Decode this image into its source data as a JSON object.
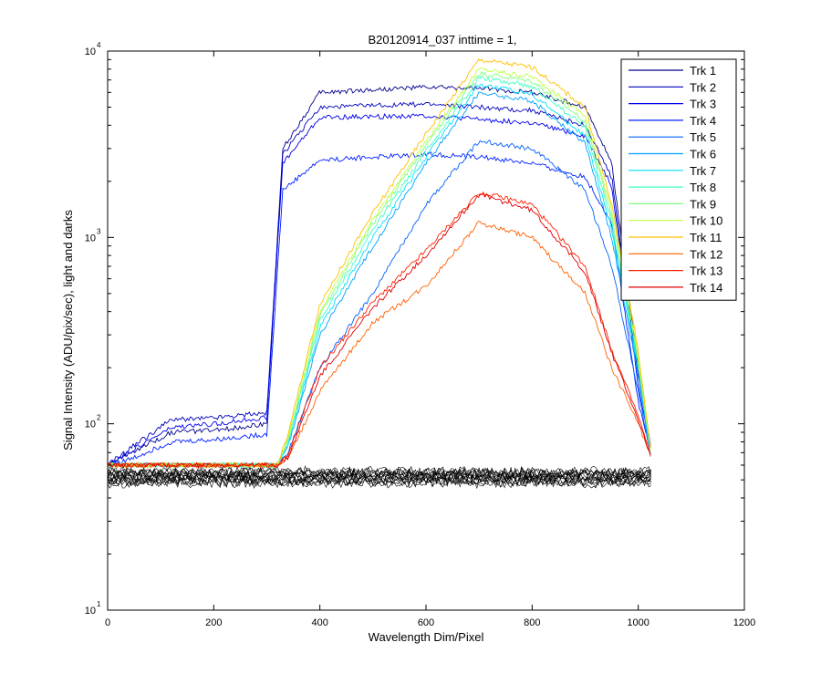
{
  "chart_data": {
    "type": "line",
    "title": "B20120914_037 inttime = 1,",
    "xlabel": "Wavelength Dim/Pixel",
    "ylabel": "Signal Intensity (ADU/pix/sec), light and darks",
    "xlim": [
      0,
      1200
    ],
    "ylim": [
      10,
      10000
    ],
    "yscale": "log",
    "x_ticks": [
      "0",
      "200",
      "400",
      "600",
      "800",
      "1000",
      "1200"
    ],
    "y_ticks": [
      {
        "value": 10,
        "base": "10",
        "exp": "1"
      },
      {
        "value": 100,
        "base": "10",
        "exp": "2"
      },
      {
        "value": 1000,
        "base": "10",
        "exp": "3"
      },
      {
        "value": 10000,
        "base": "10",
        "exp": "4"
      }
    ],
    "grid": false,
    "legend_position": "top-right",
    "series": [
      {
        "name": "Trk 1",
        "color": "#00008f",
        "values": [
          [
            0,
            60
          ],
          [
            45,
            70
          ],
          [
            120,
            90
          ],
          [
            200,
            92
          ],
          [
            300,
            100
          ],
          [
            330,
            3000
          ],
          [
            400,
            6000
          ],
          [
            600,
            6400
          ],
          [
            700,
            6300
          ],
          [
            800,
            6000
          ],
          [
            900,
            5000
          ],
          [
            950,
            2500
          ],
          [
            1000,
            200
          ],
          [
            1025,
            70
          ]
        ]
      },
      {
        "name": "Trk 2",
        "color": "#0000bf",
        "values": [
          [
            0,
            60
          ],
          [
            45,
            75
          ],
          [
            120,
            105
          ],
          [
            200,
            108
          ],
          [
            300,
            115
          ],
          [
            330,
            2800
          ],
          [
            400,
            5000
          ],
          [
            600,
            5200
          ],
          [
            700,
            5000
          ],
          [
            800,
            4800
          ],
          [
            900,
            4000
          ],
          [
            950,
            2100
          ],
          [
            1000,
            180
          ],
          [
            1025,
            70
          ]
        ]
      },
      {
        "name": "Trk 3",
        "color": "#0000ef",
        "values": [
          [
            0,
            60
          ],
          [
            45,
            72
          ],
          [
            120,
            95
          ],
          [
            200,
            100
          ],
          [
            300,
            108
          ],
          [
            330,
            2500
          ],
          [
            400,
            4400
          ],
          [
            600,
            4500
          ],
          [
            700,
            4300
          ],
          [
            800,
            4100
          ],
          [
            900,
            3500
          ],
          [
            950,
            1900
          ],
          [
            1000,
            160
          ],
          [
            1025,
            70
          ]
        ]
      },
      {
        "name": "Trk 4",
        "color": "#0020ff",
        "values": [
          [
            0,
            60
          ],
          [
            45,
            65
          ],
          [
            120,
            80
          ],
          [
            200,
            82
          ],
          [
            300,
            88
          ],
          [
            330,
            1800
          ],
          [
            400,
            2600
          ],
          [
            600,
            2800
          ],
          [
            700,
            2700
          ],
          [
            800,
            2500
          ],
          [
            900,
            2100
          ],
          [
            950,
            1200
          ],
          [
            1000,
            130
          ],
          [
            1025,
            70
          ]
        ]
      },
      {
        "name": "Trk 5",
        "color": "#0060ff",
        "values": [
          [
            0,
            60
          ],
          [
            320,
            60
          ],
          [
            340,
            70
          ],
          [
            400,
            200
          ],
          [
            500,
            500
          ],
          [
            600,
            1500
          ],
          [
            700,
            3300
          ],
          [
            800,
            3000
          ],
          [
            900,
            1800
          ],
          [
            950,
            700
          ],
          [
            1000,
            150
          ],
          [
            1025,
            65
          ]
        ]
      },
      {
        "name": "Trk 6",
        "color": "#00a0ff",
        "values": [
          [
            0,
            60
          ],
          [
            320,
            60
          ],
          [
            340,
            75
          ],
          [
            400,
            300
          ],
          [
            500,
            900
          ],
          [
            600,
            2500
          ],
          [
            700,
            6000
          ],
          [
            800,
            5400
          ],
          [
            900,
            3200
          ],
          [
            950,
            1000
          ],
          [
            1000,
            180
          ],
          [
            1025,
            65
          ]
        ]
      },
      {
        "name": "Trk 7",
        "color": "#00e0ff",
        "values": [
          [
            0,
            60
          ],
          [
            320,
            60
          ],
          [
            340,
            78
          ],
          [
            400,
            330
          ],
          [
            500,
            1000
          ],
          [
            600,
            2700
          ],
          [
            700,
            6600
          ],
          [
            800,
            5900
          ],
          [
            900,
            3500
          ],
          [
            950,
            1100
          ],
          [
            1000,
            200
          ],
          [
            1025,
            65
          ]
        ]
      },
      {
        "name": "Trk 8",
        "color": "#40ffbf",
        "values": [
          [
            0,
            60
          ],
          [
            320,
            60
          ],
          [
            340,
            80
          ],
          [
            400,
            360
          ],
          [
            500,
            1100
          ],
          [
            600,
            2900
          ],
          [
            700,
            7200
          ],
          [
            800,
            6500
          ],
          [
            900,
            3900
          ],
          [
            950,
            1200
          ],
          [
            1000,
            210
          ],
          [
            1025,
            65
          ]
        ]
      },
      {
        "name": "Trk 9",
        "color": "#80ff80",
        "values": [
          [
            0,
            60
          ],
          [
            320,
            60
          ],
          [
            340,
            82
          ],
          [
            400,
            380
          ],
          [
            500,
            1200
          ],
          [
            600,
            3100
          ],
          [
            700,
            7600
          ],
          [
            800,
            6900
          ],
          [
            900,
            4200
          ],
          [
            950,
            1300
          ],
          [
            1000,
            220
          ],
          [
            1025,
            65
          ]
        ]
      },
      {
        "name": "Trk 10",
        "color": "#bfff40",
        "values": [
          [
            0,
            60
          ],
          [
            320,
            60
          ],
          [
            340,
            85
          ],
          [
            400,
            400
          ],
          [
            500,
            1250
          ],
          [
            600,
            3300
          ],
          [
            700,
            8000
          ],
          [
            800,
            7300
          ],
          [
            900,
            4500
          ],
          [
            950,
            1400
          ],
          [
            1000,
            230
          ],
          [
            1025,
            65
          ]
        ]
      },
      {
        "name": "Trk 11",
        "color": "#ffbf00",
        "values": [
          [
            0,
            60
          ],
          [
            320,
            60
          ],
          [
            340,
            88
          ],
          [
            400,
            440
          ],
          [
            500,
            1350
          ],
          [
            600,
            3600
          ],
          [
            700,
            9000
          ],
          [
            800,
            8200
          ],
          [
            900,
            5000
          ],
          [
            950,
            1500
          ],
          [
            1000,
            250
          ],
          [
            1025,
            65
          ]
        ]
      },
      {
        "name": "Trk 12",
        "color": "#ff6000",
        "values": [
          [
            0,
            60
          ],
          [
            320,
            60
          ],
          [
            340,
            65
          ],
          [
            400,
            150
          ],
          [
            500,
            350
          ],
          [
            600,
            550
          ],
          [
            700,
            1200
          ],
          [
            800,
            1000
          ],
          [
            900,
            500
          ],
          [
            950,
            200
          ],
          [
            1000,
            100
          ],
          [
            1025,
            65
          ]
        ]
      },
      {
        "name": "Trk 13",
        "color": "#ff2000",
        "values": [
          [
            0,
            60
          ],
          [
            320,
            60
          ],
          [
            340,
            68
          ],
          [
            400,
            200
          ],
          [
            500,
            450
          ],
          [
            600,
            850
          ],
          [
            700,
            1750
          ],
          [
            800,
            1500
          ],
          [
            900,
            700
          ],
          [
            950,
            250
          ],
          [
            1000,
            110
          ],
          [
            1025,
            65
          ]
        ]
      },
      {
        "name": "Trk 14",
        "color": "#df0000",
        "values": [
          [
            0,
            60
          ],
          [
            320,
            60
          ],
          [
            340,
            66
          ],
          [
            400,
            180
          ],
          [
            500,
            420
          ],
          [
            600,
            800
          ],
          [
            700,
            1700
          ],
          [
            800,
            1400
          ],
          [
            900,
            650
          ],
          [
            950,
            240
          ],
          [
            1000,
            105
          ],
          [
            1025,
            65
          ]
        ]
      }
    ]
  }
}
